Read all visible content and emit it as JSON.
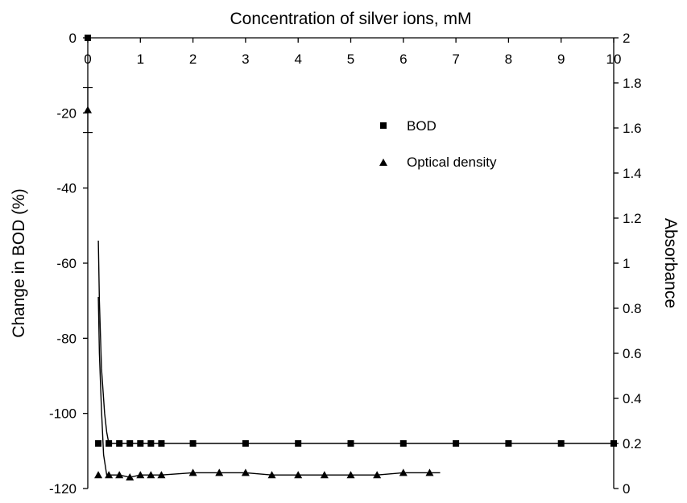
{
  "chart_data": {
    "type": "scatter",
    "title": "",
    "xlabel": "Concentration of silver ions, mM",
    "ylabel": "Change in BOD (%)",
    "y2label": "Absorbance",
    "xlim": [
      0,
      10
    ],
    "ylim": [
      -120,
      0
    ],
    "y2lim": [
      0,
      2
    ],
    "x_ticks": [
      "0",
      "1",
      "2",
      "3",
      "4",
      "5",
      "6",
      "7",
      "8",
      "9",
      "10"
    ],
    "y_ticks": [
      "0",
      "-20",
      "-40",
      "-60",
      "-80",
      "-100",
      "-120"
    ],
    "y2_ticks": [
      "2",
      "1.8",
      "1.6",
      "1.4",
      "1.2",
      "1",
      "0.8",
      "0.6",
      "0.4",
      "0.2",
      "0"
    ],
    "grid": false,
    "legend_position": "upper-right",
    "series": [
      {
        "name": "BOD",
        "marker": "square",
        "axis": "left",
        "x": [
          0,
          0.2,
          0.4,
          0.6,
          0.8,
          1.0,
          1.2,
          1.4,
          2,
          3,
          4,
          5,
          6,
          7,
          8,
          9,
          10
        ],
        "y": [
          0,
          -108,
          -108,
          -108,
          -108,
          -108,
          -108,
          -108,
          -108,
          -108,
          -108,
          -108,
          -108,
          -108,
          -108,
          -108,
          -108
        ],
        "trend": {
          "x": [
            0.2,
            0.22,
            0.26,
            0.32,
            0.36,
            0.4,
            1,
            2,
            3,
            4,
            5,
            6,
            7,
            8,
            9,
            10
          ],
          "y": [
            -54,
            -70,
            -88,
            -100,
            -105,
            -108,
            -108,
            -108,
            -108,
            -108,
            -108,
            -108,
            -108,
            -108,
            -108,
            -108
          ]
        }
      },
      {
        "name": "Optical density",
        "marker": "triangle",
        "axis": "right",
        "x": [
          0,
          0.2,
          0.4,
          0.6,
          0.8,
          1.0,
          1.2,
          1.4,
          2,
          2.5,
          3,
          3.5,
          4,
          4.5,
          5,
          5.5,
          6,
          6.5
        ],
        "y": [
          1.68,
          0.06,
          0.06,
          0.06,
          0.05,
          0.06,
          0.06,
          0.06,
          0.07,
          0.07,
          0.07,
          0.06,
          0.06,
          0.06,
          0.06,
          0.06,
          0.07,
          0.07
        ],
        "error": [
          0.1,
          null,
          null,
          null,
          null,
          null,
          null,
          null,
          null,
          null,
          null,
          null,
          null,
          null,
          null,
          null,
          null,
          null
        ],
        "trend": {
          "x": [
            0.2,
            0.22,
            0.26,
            0.3,
            0.36,
            0.4,
            0.6,
            0.8,
            1.0,
            1.2,
            1.4,
            2,
            2.5,
            3,
            3.5,
            4,
            4.5,
            5,
            5.5,
            6,
            6.5,
            6.7
          ],
          "y": [
            0.85,
            0.6,
            0.35,
            0.15,
            0.06,
            0.06,
            0.06,
            0.05,
            0.06,
            0.06,
            0.06,
            0.07,
            0.07,
            0.07,
            0.06,
            0.06,
            0.06,
            0.06,
            0.06,
            0.07,
            0.07,
            0.07
          ]
        }
      }
    ]
  }
}
